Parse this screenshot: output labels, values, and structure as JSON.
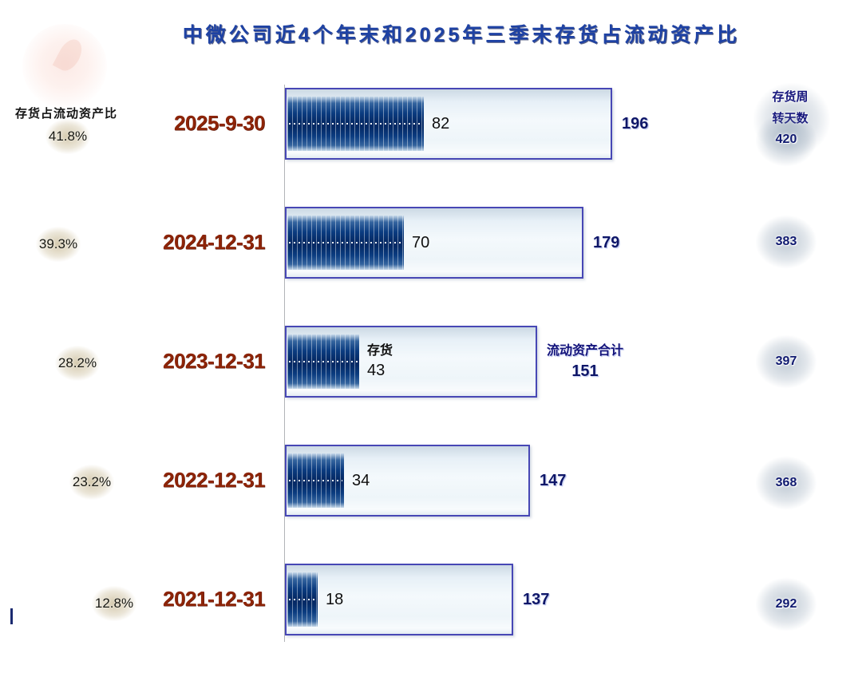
{
  "title": "中微公司近4个年末和2025年三季末存货占流动资产比",
  "left_panel": {
    "header": "存货占流动资产比"
  },
  "right_panel": {
    "header_line1": "存货周",
    "header_line2": "转天数"
  },
  "series_labels": {
    "inventory": "存货",
    "current_assets": "流动资产合计"
  },
  "rows": [
    {
      "date": "2025-9-30",
      "ratio": "41.8%",
      "inventory": "82",
      "current_assets": "196",
      "turnover_days": "420"
    },
    {
      "date": "2024-12-31",
      "ratio": "39.3%",
      "inventory": "70",
      "current_assets": "179",
      "turnover_days": "383"
    },
    {
      "date": "2023-12-31",
      "ratio": "28.2%",
      "inventory": "43",
      "current_assets": "151",
      "turnover_days": "397"
    },
    {
      "date": "2022-12-31",
      "ratio": "23.2%",
      "inventory": "34",
      "current_assets": "147",
      "turnover_days": "368"
    },
    {
      "date": "2021-12-31",
      "ratio": "12.8%",
      "inventory": "18",
      "current_assets": "137",
      "turnover_days": "292"
    }
  ],
  "chart_data": {
    "type": "bar",
    "orientation": "horizontal",
    "title": "中微公司近4个年末和2025年三季末存货占流动资产比",
    "categories": [
      "2025-9-30",
      "2024-12-31",
      "2023-12-31",
      "2022-12-31",
      "2021-12-31"
    ],
    "series": [
      {
        "name": "存货",
        "values": [
          82,
          70,
          43,
          34,
          18
        ]
      },
      {
        "name": "流动资产合计",
        "values": [
          196,
          179,
          151,
          147,
          137
        ]
      }
    ],
    "annotations": {
      "存货占流动资产比": [
        "41.8%",
        "39.3%",
        "28.2%",
        "23.2%",
        "12.8%"
      ],
      "存货周转天数": [
        420,
        383,
        397,
        368,
        292
      ]
    },
    "xlim": [
      0,
      196
    ],
    "grid": false,
    "legend": "inline labels on 2023-12-31 bars (存货 / 流动资产合计)"
  },
  "colors": {
    "title_blue": "#1e42a4",
    "date_maroon": "#8d2408",
    "bar_border_blue": "#4747b5",
    "inner_bar_navy": "#052a66",
    "value_navy": "#0e1668",
    "percent_ellipse_beige": "#cec1a0",
    "glow_gray_blue": "#8498ac"
  }
}
